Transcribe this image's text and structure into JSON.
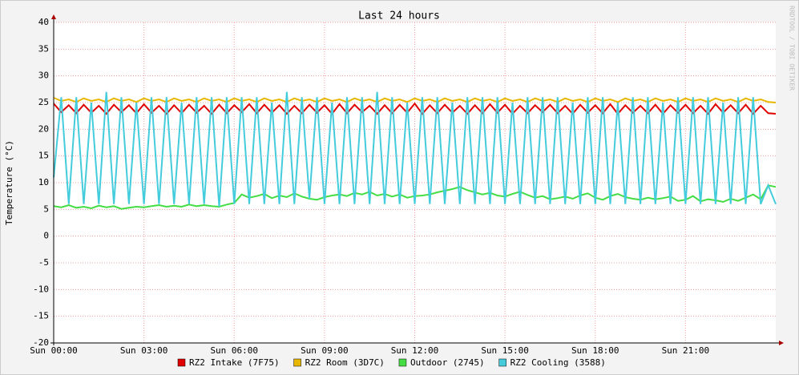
{
  "chart_data": {
    "type": "line",
    "title": "Last 24 hours",
    "y_label": "Temperature (°C)",
    "watermark": "RRDTOOL / TOBI OETIKER",
    "x": [
      0,
      0.25,
      0.5,
      0.75,
      1,
      1.25,
      1.5,
      1.75,
      2,
      2.25,
      2.5,
      2.75,
      3,
      3.25,
      3.5,
      3.75,
      4,
      4.25,
      4.5,
      4.75,
      5,
      5.25,
      5.5,
      5.75,
      6,
      6.25,
      6.5,
      6.75,
      7,
      7.25,
      7.5,
      7.75,
      8,
      8.25,
      8.5,
      8.75,
      9,
      9.25,
      9.5,
      9.75,
      10,
      10.25,
      10.5,
      10.75,
      11,
      11.25,
      11.5,
      11.75,
      12,
      12.25,
      12.5,
      12.75,
      13,
      13.25,
      13.5,
      13.75,
      14,
      14.25,
      14.5,
      14.75,
      15,
      15.25,
      15.5,
      15.75,
      16,
      16.25,
      16.5,
      16.75,
      17,
      17.25,
      17.5,
      17.75,
      18,
      18.25,
      18.5,
      18.75,
      19,
      19.25,
      19.5,
      19.75,
      20,
      20.25,
      20.5,
      20.75,
      21,
      21.25,
      21.5,
      21.75,
      22,
      22.25,
      22.5,
      22.75,
      23,
      23.25,
      23.5,
      23.75,
      24
    ],
    "series": [
      {
        "name": "RZ2 Intake (7F75)",
        "color": "#e00000",
        "values": [
          24.8,
          23.2,
          24.5,
          23.0,
          24.6,
          23.1,
          24.4,
          22.9,
          24.6,
          23.2,
          24.5,
          23.0,
          24.7,
          23.1,
          24.4,
          22.9,
          24.5,
          23.0,
          24.6,
          23.1,
          24.4,
          22.9,
          24.6,
          23.0,
          24.5,
          23.2,
          24.7,
          23.0,
          24.6,
          23.1,
          24.5,
          22.9,
          24.4,
          23.0,
          24.6,
          23.1,
          24.5,
          22.9,
          24.7,
          23.0,
          24.6,
          23.2,
          24.4,
          22.9,
          24.5,
          23.0,
          24.6,
          23.1,
          24.8,
          22.9,
          24.5,
          23.0,
          24.6,
          23.1,
          24.4,
          22.9,
          24.5,
          23.0,
          24.7,
          23.1,
          24.6,
          22.9,
          24.4,
          23.0,
          24.5,
          23.2,
          24.6,
          23.0,
          24.4,
          22.9,
          24.6,
          23.1,
          24.5,
          23.0,
          24.7,
          22.9,
          24.5,
          23.1,
          24.4,
          23.0,
          24.6,
          22.9,
          24.5,
          23.1,
          24.6,
          23.0,
          24.4,
          22.9,
          24.7,
          23.1,
          24.5,
          23.0,
          24.6,
          22.9,
          24.4,
          23.0,
          22.9
        ]
      },
      {
        "name": "RZ2 Room (3D7C)",
        "color": "#e8b800",
        "values": [
          25.9,
          25.3,
          25.6,
          25.1,
          25.8,
          25.3,
          25.6,
          25.1,
          25.8,
          25.3,
          25.6,
          25.1,
          25.8,
          25.3,
          25.6,
          25.1,
          25.8,
          25.3,
          25.6,
          25.1,
          25.8,
          25.3,
          25.6,
          25.1,
          25.8,
          25.3,
          25.6,
          25.1,
          25.8,
          25.3,
          25.6,
          25.1,
          25.8,
          25.3,
          25.6,
          25.1,
          25.8,
          25.3,
          25.6,
          25.1,
          25.8,
          25.3,
          25.6,
          25.1,
          25.8,
          25.3,
          25.6,
          25.1,
          25.8,
          25.3,
          25.6,
          25.1,
          25.8,
          25.3,
          25.6,
          25.1,
          25.8,
          25.3,
          25.6,
          25.1,
          25.8,
          25.3,
          25.6,
          25.1,
          25.8,
          25.3,
          25.6,
          25.1,
          25.8,
          25.3,
          25.6,
          25.1,
          25.8,
          25.3,
          25.6,
          25.1,
          25.8,
          25.3,
          25.6,
          25.1,
          25.8,
          25.3,
          25.6,
          25.1,
          25.8,
          25.3,
          25.6,
          25.1,
          25.8,
          25.3,
          25.6,
          25.1,
          25.8,
          25.3,
          25.6,
          25.1,
          25.0
        ]
      },
      {
        "name": "Outdoor (2745)",
        "color": "#44dd44",
        "values": [
          5.6,
          5.4,
          5.8,
          5.3,
          5.5,
          5.2,
          5.7,
          5.4,
          5.6,
          5.1,
          5.3,
          5.5,
          5.4,
          5.6,
          5.8,
          5.5,
          5.7,
          5.5,
          5.9,
          5.6,
          5.8,
          5.6,
          5.5,
          5.9,
          6.2,
          7.8,
          7.2,
          7.5,
          7.9,
          7.1,
          7.6,
          7.3,
          8.0,
          7.4,
          7.0,
          6.8,
          7.3,
          7.6,
          7.8,
          7.5,
          8.1,
          7.8,
          8.3,
          7.6,
          7.9,
          7.4,
          7.8,
          7.2,
          7.5,
          7.6,
          7.8,
          8.2,
          8.5,
          8.8,
          9.2,
          8.6,
          8.2,
          7.8,
          8.1,
          7.6,
          7.4,
          7.9,
          8.3,
          7.7,
          7.2,
          7.5,
          6.9,
          7.1,
          7.4,
          7.0,
          7.6,
          8.0,
          7.2,
          6.8,
          7.5,
          7.9,
          7.3,
          7.0,
          6.8,
          7.2,
          6.9,
          7.1,
          7.4,
          6.6,
          6.8,
          7.5,
          6.5,
          6.9,
          6.7,
          6.4,
          7.0,
          6.6,
          7.2,
          7.8,
          6.9,
          9.5,
          9.2
        ]
      },
      {
        "name": "RZ2 Cooling (3588)",
        "color": "#44ccdd",
        "values": [
          11,
          26,
          6,
          26,
          6,
          25,
          6,
          27,
          6,
          26,
          6,
          25,
          6,
          26,
          6,
          26,
          6,
          25,
          6,
          26,
          6,
          26,
          5.5,
          26,
          6,
          26,
          6,
          26,
          6,
          25,
          6,
          27,
          6,
          26,
          7,
          26,
          6,
          25,
          6,
          26,
          6,
          26,
          6,
          27,
          6,
          26,
          6,
          25,
          6,
          26,
          6,
          26,
          6,
          25,
          6,
          26,
          6,
          26,
          6,
          26,
          6,
          25,
          6,
          26,
          6,
          26,
          6,
          26,
          6,
          25,
          6,
          26,
          6,
          26,
          6,
          25,
          6,
          26,
          6,
          26,
          6,
          25,
          6,
          26,
          6,
          26,
          6,
          26,
          6,
          25,
          6,
          26,
          6,
          26,
          6,
          9.5,
          6
        ]
      }
    ],
    "xlim": [
      0,
      24
    ],
    "xticks": [
      {
        "value": 0,
        "label": "Sun 00:00"
      },
      {
        "value": 3,
        "label": "Sun 03:00"
      },
      {
        "value": 6,
        "label": "Sun 06:00"
      },
      {
        "value": 9,
        "label": "Sun 09:00"
      },
      {
        "value": 12,
        "label": "Sun 12:00"
      },
      {
        "value": 15,
        "label": "Sun 15:00"
      },
      {
        "value": 18,
        "label": "Sun 18:00"
      },
      {
        "value": 21,
        "label": "Sun 21:00"
      }
    ],
    "ylim": [
      -20,
      40
    ],
    "yticks": [
      -20,
      -15,
      -10,
      -5,
      0,
      5,
      10,
      15,
      20,
      25,
      30,
      35,
      40
    ],
    "grid": true
  }
}
